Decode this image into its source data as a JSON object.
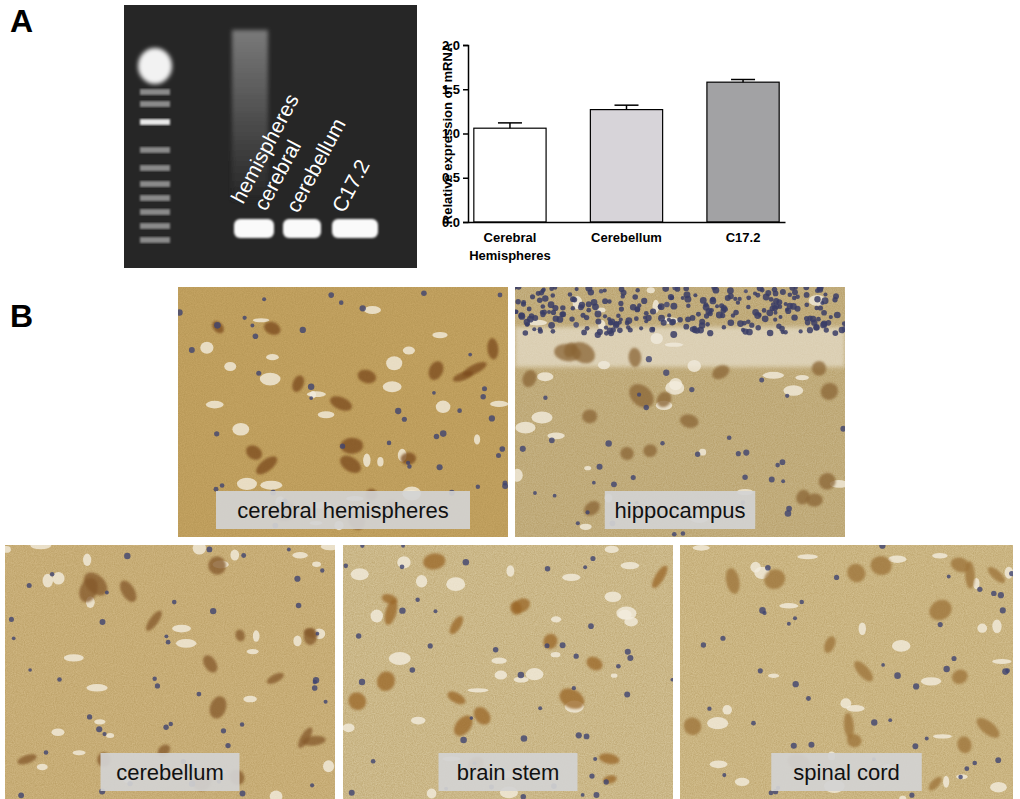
{
  "panel_labels": [
    "A",
    "B"
  ],
  "gel": {
    "lanes": [
      {
        "label_lines": [
          "hemispheres",
          "cerebral"
        ]
      },
      {
        "label_lines": [
          "cerebellum"
        ]
      },
      {
        "label_lines": [
          "C17.2"
        ]
      }
    ]
  },
  "chart_data": {
    "type": "bar",
    "y_label": "Relative expression of mRNA",
    "categories": [
      "Cerebral Hemispheres",
      "Cerebellum",
      "C17.2"
    ],
    "values": [
      1.06,
      1.27,
      1.58
    ],
    "errors": [
      0.06,
      0.05,
      0.03
    ],
    "colors": [
      "#ffffff",
      "#d7d4d9",
      "#a2a2a4"
    ],
    "ylim": [
      0,
      2
    ],
    "yticks": [
      {
        "value": 0,
        "label": "0.0"
      },
      {
        "value": 0.5,
        "label": "0.5"
      },
      {
        "value": 1,
        "label": "1.0"
      },
      {
        "value": 1.5,
        "label": "1.5"
      },
      {
        "value": 2,
        "label": "2.0"
      }
    ]
  },
  "histology": {
    "panels": [
      {
        "label": "cerebral hemispheres"
      },
      {
        "label": "hippocampus"
      },
      {
        "label": "cerebellum"
      },
      {
        "label": "brain stem"
      },
      {
        "label": "spinal cord"
      }
    ]
  }
}
